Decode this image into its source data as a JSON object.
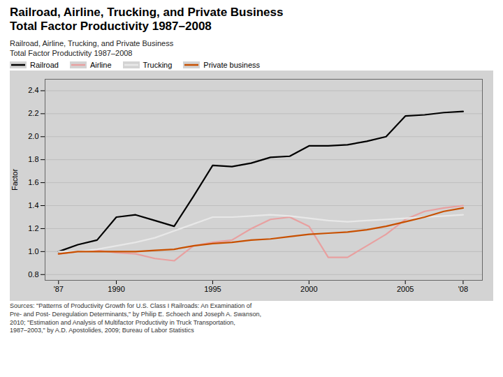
{
  "chart_data": {
    "type": "line",
    "title": "Railroad, Airline, Trucking, and Private Business\nTotal Factor Productivity 1987–2008",
    "subtitle": "Railroad, Airline, Trucking, and Private Business\nTotal Factor Productivity 1987–2008",
    "caption": "Sources: \"Patterns of Productivity Growth for U.S. Class I Railroads: An Examination of\nPre- and Post- Deregulation Determinants,\" by Philip E. Schoech and Joseph A. Swanson,\n2010; \"Estimation and Analysis of Multifactor Productivity in Truck Transportation,\n1987–2003,\" by A.D. Apostolides, 2009; Bureau of Labor Statistics",
    "y_label": "Factor",
    "x": [
      1987,
      1988,
      1989,
      1990,
      1991,
      1992,
      1993,
      1994,
      1995,
      1996,
      1997,
      1998,
      1999,
      2000,
      2001,
      2002,
      2003,
      2004,
      2005,
      2006,
      2007,
      2008
    ],
    "series": [
      {
        "name": "Railroad",
        "color": "#000000",
        "values": [
          1.0,
          1.06,
          1.1,
          1.3,
          1.32,
          1.27,
          1.22,
          1.48,
          1.75,
          1.74,
          1.77,
          1.82,
          1.83,
          1.92,
          1.92,
          1.93,
          1.96,
          2.0,
          2.18,
          2.19,
          2.21,
          2.22
        ]
      },
      {
        "name": "Airline",
        "color": "#e8a0a0",
        "values": [
          0.98,
          1.0,
          1.01,
          0.99,
          0.98,
          0.94,
          0.92,
          1.05,
          1.08,
          1.1,
          1.2,
          1.28,
          1.3,
          1.22,
          0.95,
          0.95,
          1.05,
          1.15,
          1.28,
          1.35,
          1.38,
          1.4
        ]
      },
      {
        "name": "Trucking",
        "color": "#e8e8e8",
        "values": [
          1.0,
          1.0,
          1.02,
          1.05,
          1.08,
          1.12,
          1.18,
          1.24,
          1.3,
          1.3,
          1.31,
          1.32,
          1.31,
          1.29,
          1.27,
          1.26,
          1.27,
          1.28,
          1.29,
          1.3,
          1.31,
          1.32
        ]
      },
      {
        "name": "Private business",
        "color": "#c85000",
        "values": [
          0.98,
          1.0,
          1.0,
          1.0,
          1.0,
          1.01,
          1.02,
          1.05,
          1.07,
          1.08,
          1.1,
          1.11,
          1.13,
          1.15,
          1.16,
          1.17,
          1.19,
          1.22,
          1.26,
          1.3,
          1.35,
          1.38
        ]
      }
    ],
    "xlim": [
      1986.3,
      2009.0
    ],
    "xticks": [
      {
        "value": 1987,
        "label": "'87"
      },
      1990,
      1995,
      2000,
      2005,
      {
        "value": 2008,
        "label": "'08"
      }
    ],
    "ylim": [
      0.75,
      2.5
    ],
    "yticks": [
      0.8,
      {
        "value": 1.0,
        "label": "1.0"
      },
      1.2,
      1.4,
      1.6,
      1.8,
      {
        "value": 2.0,
        "label": "2.0"
      },
      2.2,
      2.4
    ],
    "grid": true,
    "legend": "upper left"
  }
}
